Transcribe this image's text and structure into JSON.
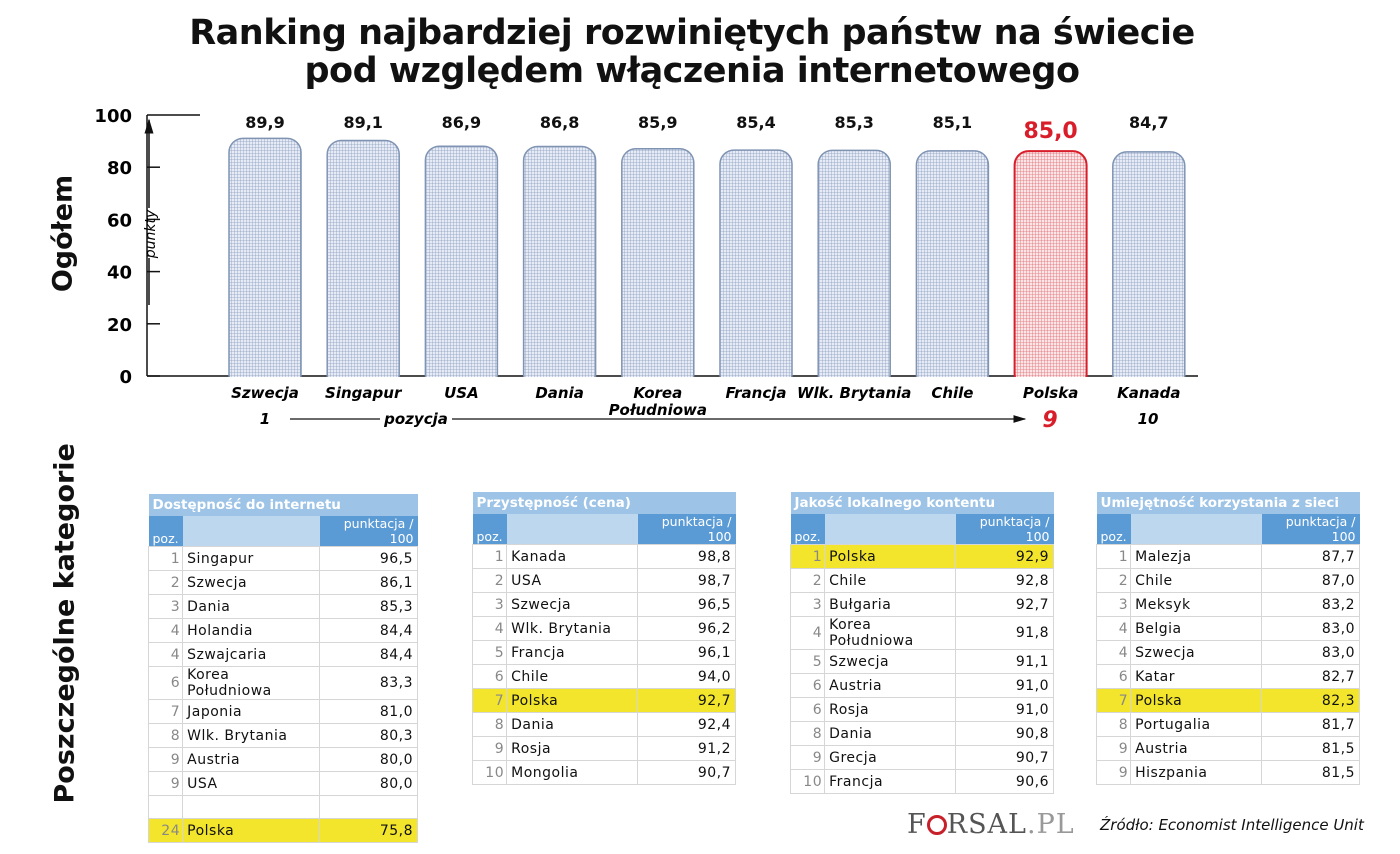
{
  "title_line1": "Ranking najbardziej rozwiniętych państw na świecie",
  "title_line2": "pod względem włączenia internetowego",
  "section_overall": "Ogółem",
  "section_categories": "Poszczególne kategorie",
  "colors": {
    "bar_fill": "#c9d4ea",
    "bar_stroke": "#7f93b3",
    "highlight_fill": "#f6cdd0",
    "highlight_stroke": "#d81e2a",
    "highlight_text": "#d81e2a",
    "table_header": "#9dc3e6",
    "table_sub": "#5b9bd5",
    "row_highlight": "#f2e52c"
  },
  "chart_data": {
    "type": "bar",
    "title": "Ranking najbardziej rozwiniętych państw na świecie pod względem włączenia internetowego",
    "ylabel": "punkty",
    "xlabel": "pozycja",
    "ylim": [
      0,
      100
    ],
    "yticks": [
      0,
      20,
      40,
      60,
      80,
      100
    ],
    "categories": [
      "Szwecja",
      "Singapur",
      "USA",
      "Dania",
      "Korea Południowa",
      "Francja",
      "Wlk. Brytania",
      "Chile",
      "Polska",
      "Kanada"
    ],
    "category_lines": [
      [
        "Szwecja"
      ],
      [
        "Singapur"
      ],
      [
        "USA"
      ],
      [
        "Dania"
      ],
      [
        "Korea",
        "Południowa"
      ],
      [
        "Francja"
      ],
      [
        "Wlk. Brytania"
      ],
      [
        "Chile"
      ],
      [
        "Polska"
      ],
      [
        "Kanada"
      ]
    ],
    "values": [
      89.9,
      89.1,
      86.9,
      86.8,
      85.9,
      85.4,
      85.3,
      85.1,
      85.0,
      84.7
    ],
    "value_labels": [
      "89,9",
      "89,1",
      "86,9",
      "86,8",
      "85,9",
      "85,4",
      "85,3",
      "85,1",
      "85,0",
      "84,7"
    ],
    "highlight": "Polska",
    "position_labels": {
      "first": "1",
      "highlight": "9",
      "last": "10"
    }
  },
  "tables": [
    {
      "title": "Dostępność do internetu",
      "pos_header": "poz.",
      "score_header": "punktacja / 100",
      "rows": [
        [
          "1",
          "Singapur",
          "96,5"
        ],
        [
          "2",
          "Szwecja",
          "86,1"
        ],
        [
          "3",
          "Dania",
          "85,3"
        ],
        [
          "4",
          "Holandia",
          "84,4"
        ],
        [
          "4",
          "Szwajcaria",
          "84,4"
        ],
        [
          "6",
          "Korea Południowa",
          "83,3"
        ],
        [
          "7",
          "Japonia",
          "81,0"
        ],
        [
          "8",
          "Wlk. Brytania",
          "80,3"
        ],
        [
          "9",
          "Austria",
          "80,0"
        ],
        [
          "9",
          "USA",
          "80,0"
        ],
        [
          "",
          "",
          ""
        ],
        [
          "24",
          "Polska",
          "75,8"
        ]
      ]
    },
    {
      "title": "Przystępność (cena)",
      "pos_header": "poz.",
      "score_header": "punktacja / 100",
      "rows": [
        [
          "1",
          "Kanada",
          "98,8"
        ],
        [
          "2",
          "USA",
          "98,7"
        ],
        [
          "3",
          "Szwecja",
          "96,5"
        ],
        [
          "4",
          "Wlk. Brytania",
          "96,2"
        ],
        [
          "5",
          "Francja",
          "96,1"
        ],
        [
          "6",
          "Chile",
          "94,0"
        ],
        [
          "7",
          "Polska",
          "92,7"
        ],
        [
          "8",
          "Dania",
          "92,4"
        ],
        [
          "9",
          "Rosja",
          "91,2"
        ],
        [
          "10",
          "Mongolia",
          "90,7"
        ]
      ]
    },
    {
      "title": "Jakość lokalnego kontentu",
      "pos_header": "poz.",
      "score_header": "punktacja / 100",
      "rows": [
        [
          "1",
          "Polska",
          "92,9"
        ],
        [
          "2",
          "Chile",
          "92,8"
        ],
        [
          "3",
          "Bułgaria",
          "92,7"
        ],
        [
          "4",
          "Korea Południowa",
          "91,8"
        ],
        [
          "5",
          "Szwecja",
          "91,1"
        ],
        [
          "6",
          "Austria",
          "91,0"
        ],
        [
          "6",
          "Rosja",
          "91,0"
        ],
        [
          "8",
          "Dania",
          "90,8"
        ],
        [
          "9",
          "Grecja",
          "90,7"
        ],
        [
          "10",
          "Francja",
          "90,6"
        ]
      ]
    },
    {
      "title": "Umiejętność korzystania z sieci",
      "pos_header": "poz.",
      "score_header": "punktacja / 100",
      "rows": [
        [
          "1",
          "Malezja",
          "87,7"
        ],
        [
          "2",
          "Chile",
          "87,0"
        ],
        [
          "3",
          "Meksyk",
          "83,2"
        ],
        [
          "4",
          "Belgia",
          "83,0"
        ],
        [
          "4",
          "Szwecja",
          "83,0"
        ],
        [
          "6",
          "Katar",
          "82,7"
        ],
        [
          "7",
          "Polska",
          "82,3"
        ],
        [
          "8",
          "Portugalia",
          "81,7"
        ],
        [
          "9",
          "Austria",
          "81,5"
        ],
        [
          "9",
          "Hiszpania",
          "81,5"
        ]
      ]
    }
  ],
  "logo": "FORSAL.PL",
  "source": "Źródło: Economist Intelligence Unit"
}
